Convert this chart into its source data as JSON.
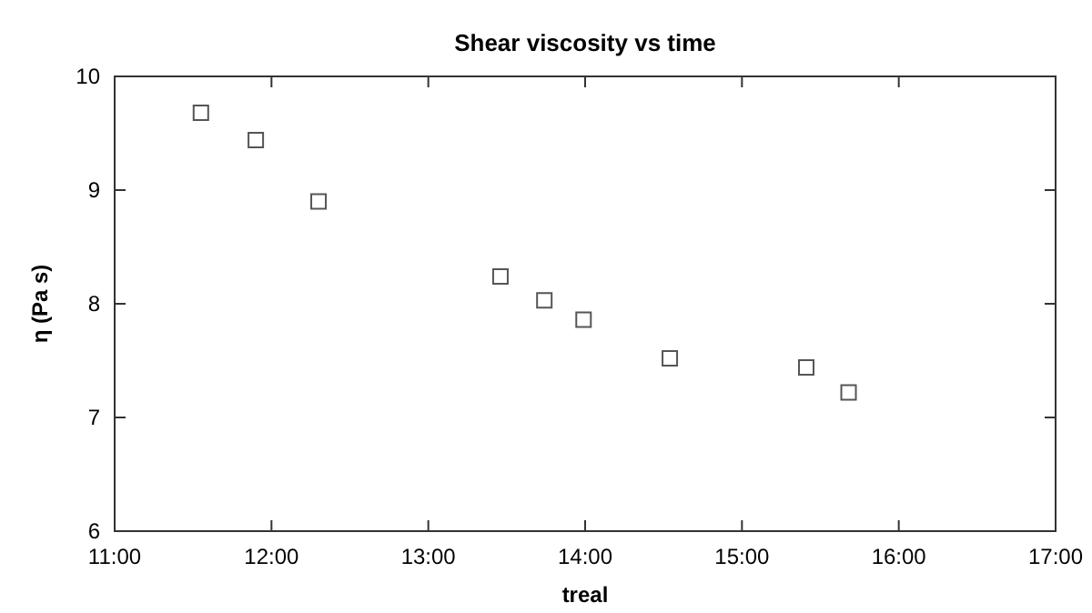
{
  "chart_data": {
    "type": "scatter",
    "title": "Shear viscosity vs time",
    "xlabel": "treal",
    "ylabel": "η (Pa s)",
    "x": [
      11.55,
      11.9,
      12.3,
      13.46,
      13.74,
      13.99,
      14.54,
      15.41,
      15.68
    ],
    "values": [
      9.68,
      9.44,
      8.9,
      8.24,
      8.03,
      7.86,
      7.52,
      7.44,
      7.22
    ],
    "color": "#555555",
    "marker": "square",
    "grid": false,
    "xlim": [
      11,
      17
    ],
    "xticks": [
      {
        "value": 11,
        "label": "11:00"
      },
      {
        "value": 12,
        "label": "12:00"
      },
      {
        "value": 13,
        "label": "13:00"
      },
      {
        "value": 14,
        "label": "14:00"
      },
      {
        "value": 15,
        "label": "15:00"
      },
      {
        "value": 16,
        "label": "16:00"
      },
      {
        "value": 17,
        "label": "17:00"
      }
    ],
    "ylim": [
      6,
      10
    ],
    "yticks": [
      6,
      7,
      8,
      9,
      10
    ]
  }
}
